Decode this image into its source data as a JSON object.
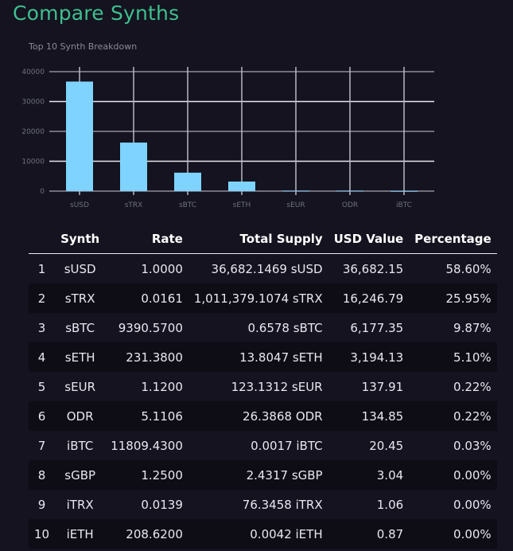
{
  "page": {
    "title": "Compare Synths"
  },
  "colors": {
    "title": "#3fbf8f",
    "bar": "#7fd4ff",
    "background": "#14131f",
    "row_alt": "#0e0d16"
  },
  "chart_data": {
    "type": "bar",
    "title": "Top 10 Synth Breakdown",
    "categories": [
      "sUSD",
      "sTRX",
      "sBTC",
      "sETH",
      "sEUR",
      "ODR",
      "iBTC"
    ],
    "values": [
      36682.15,
      16246.79,
      6177.35,
      3194.13,
      137.91,
      134.85,
      20.45
    ],
    "xlabel": "",
    "ylabel": "",
    "ylim": [
      0,
      40000
    ],
    "yticks": [
      "0",
      "10000",
      "20000",
      "30000",
      "40000"
    ],
    "grid": true
  },
  "table": {
    "headers": [
      "",
      "Synth",
      "Rate",
      "Total Supply",
      "USD Value",
      "Percentage"
    ],
    "rows": [
      {
        "rank": "1",
        "synth": "sUSD",
        "rate": "1.0000",
        "supply": "36,682.1469 sUSD",
        "usd": "36,682.15",
        "pct": "58.60%"
      },
      {
        "rank": "2",
        "synth": "sTRX",
        "rate": "0.0161",
        "supply": "1,011,379.1074 sTRX",
        "usd": "16,246.79",
        "pct": "25.95%"
      },
      {
        "rank": "3",
        "synth": "sBTC",
        "rate": "9390.5700",
        "supply": "0.6578 sBTC",
        "usd": "6,177.35",
        "pct": "9.87%"
      },
      {
        "rank": "4",
        "synth": "sETH",
        "rate": "231.3800",
        "supply": "13.8047 sETH",
        "usd": "3,194.13",
        "pct": "5.10%"
      },
      {
        "rank": "5",
        "synth": "sEUR",
        "rate": "1.1200",
        "supply": "123.1312 sEUR",
        "usd": "137.91",
        "pct": "0.22%"
      },
      {
        "rank": "6",
        "synth": "ODR",
        "rate": "5.1106",
        "supply": "26.3868 ODR",
        "usd": "134.85",
        "pct": "0.22%"
      },
      {
        "rank": "7",
        "synth": "iBTC",
        "rate": "11809.4300",
        "supply": "0.0017 iBTC",
        "usd": "20.45",
        "pct": "0.03%"
      },
      {
        "rank": "8",
        "synth": "sGBP",
        "rate": "1.2500",
        "supply": "2.4317 sGBP",
        "usd": "3.04",
        "pct": "0.00%"
      },
      {
        "rank": "9",
        "synth": "iTRX",
        "rate": "0.0139",
        "supply": "76.3458 iTRX",
        "usd": "1.06",
        "pct": "0.00%"
      },
      {
        "rank": "10",
        "synth": "iETH",
        "rate": "208.6200",
        "supply": "0.0042 iETH",
        "usd": "0.87",
        "pct": "0.00%"
      }
    ]
  }
}
